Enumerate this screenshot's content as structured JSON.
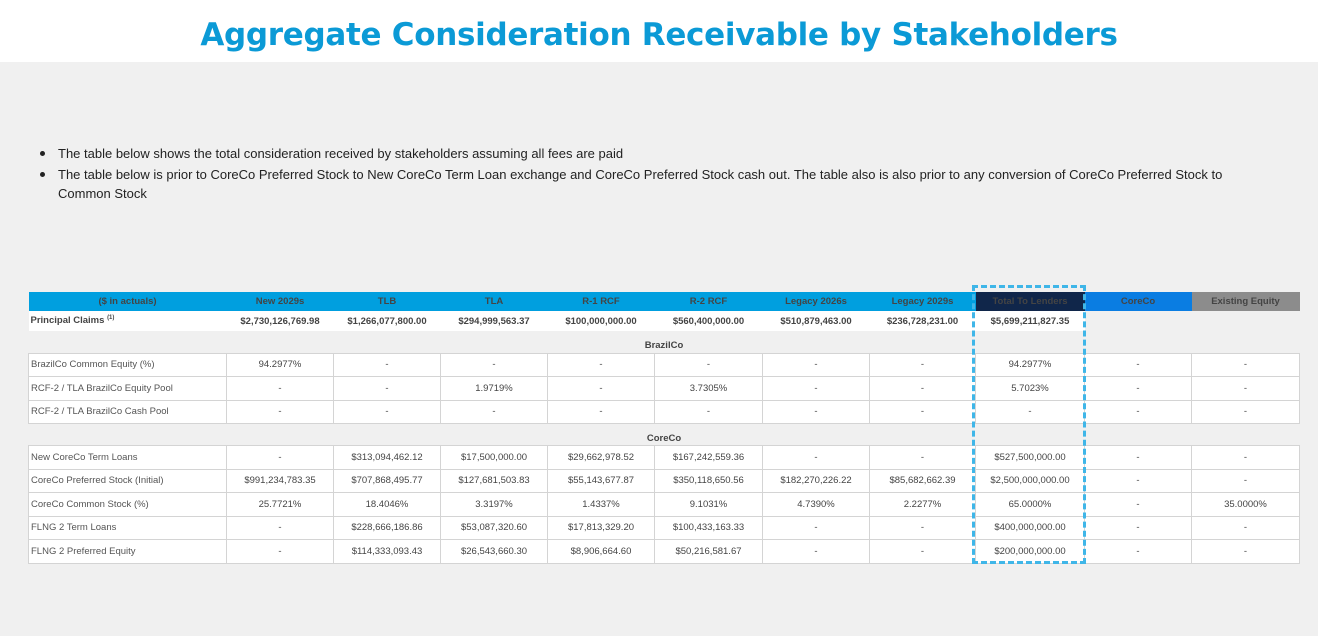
{
  "title": "Aggregate Consideration Receivable by Stakeholders",
  "bullets": [
    "The table below shows the total consideration received by stakeholders assuming all fees are paid",
    "The table below is prior to CoreCo Preferred Stock to New CoreCo Term Loan exchange and CoreCo Preferred Stock cash out. The table also is also prior to any conversion of CoreCo Preferred Stock to Common Stock"
  ],
  "table": {
    "columns": [
      "($ in actuals)",
      "New 2029s",
      "TLB",
      "TLA",
      "R-1 RCF",
      "R-2 RCF",
      "Legacy 2026s",
      "Legacy 2029s",
      "Total To Lenders",
      "CoreCo",
      "Existing Equity"
    ],
    "principal": {
      "label": "Principal Claims",
      "footnote": "(1)",
      "values": [
        "$2,730,126,769.98",
        "$1,266,077,800.00",
        "$294,999,563.37",
        "$100,000,000.00",
        "$560,400,000.00",
        "$510,879,463.00",
        "$236,728,231.00",
        "$5,699,211,827.35"
      ]
    },
    "sections": [
      {
        "name": "BrazilCo",
        "rows": [
          {
            "label": "BrazilCo Common Equity (%)",
            "values": [
              "94.2977%",
              "-",
              "-",
              "-",
              "-",
              "-",
              "-",
              "94.2977%",
              "-",
              "-"
            ]
          },
          {
            "label": "RCF-2 / TLA BrazilCo Equity Pool",
            "values": [
              "-",
              "-",
              "1.9719%",
              "-",
              "3.7305%",
              "-",
              "-",
              "5.7023%",
              "-",
              "-"
            ]
          },
          {
            "label": "RCF-2 / TLA BrazilCo Cash Pool",
            "values": [
              "-",
              "-",
              "-",
              "-",
              "-",
              "-",
              "-",
              "-",
              "-",
              "-"
            ]
          }
        ]
      },
      {
        "name": "CoreCo",
        "rows": [
          {
            "label": "New CoreCo Term Loans",
            "values": [
              "-",
              "$313,094,462.12",
              "$17,500,000.00",
              "$29,662,978.52",
              "$167,242,559.36",
              "-",
              "-",
              "$527,500,000.00",
              "-",
              "-"
            ]
          },
          {
            "label": "CoreCo Preferred Stock (Initial)",
            "values": [
              "$991,234,783.35",
              "$707,868,495.77",
              "$127,681,503.83",
              "$55,143,677.87",
              "$350,118,650.56",
              "$182,270,226.22",
              "$85,682,662.39",
              "$2,500,000,000.00",
              "-",
              "-"
            ]
          },
          {
            "label": "CoreCo Common Stock (%)",
            "values": [
              "25.7721%",
              "18.4046%",
              "3.3197%",
              "1.4337%",
              "9.1031%",
              "4.7390%",
              "2.2277%",
              "65.0000%",
              "-",
              "35.0000%"
            ]
          },
          {
            "label": "FLNG 2 Term Loans",
            "values": [
              "-",
              "$228,666,186.86",
              "$53,087,320.60",
              "$17,813,329.20",
              "$100,433,163.33",
              "-",
              "-",
              "$400,000,000.00",
              "-",
              "-"
            ]
          },
          {
            "label": "FLNG 2 Preferred Equity",
            "values": [
              "-",
              "$114,333,093.43",
              "$26,543,660.30",
              "$8,906,664.60",
              "$50,216,581.67",
              "-",
              "-",
              "$200,000,000.00",
              "-",
              "-"
            ]
          }
        ]
      }
    ]
  },
  "colors": {
    "title": "#0b9ad6",
    "header": "#009fdf",
    "total_header": "#10264a",
    "coreco_header": "#0a7de2",
    "existing_header": "#8c8c8c",
    "highlight_dash": "#3fb6e8"
  }
}
